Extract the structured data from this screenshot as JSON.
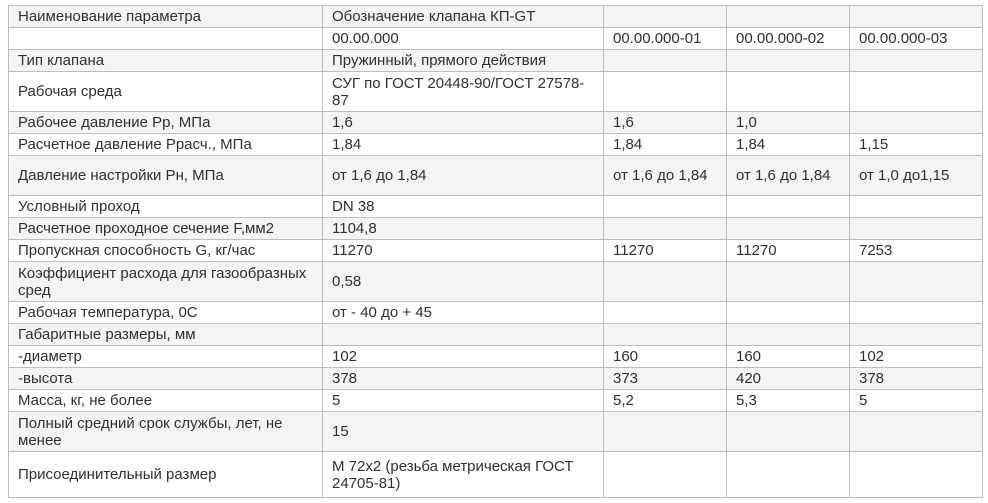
{
  "table": {
    "header": {
      "param_label": "Наименование параметра",
      "designation_label": "Обозначение клапана КП-GT",
      "variants": [
        "00.00.000",
        "00.00.000-01",
        "00.00.000-02",
        "00.00.000-03"
      ]
    },
    "rows": [
      {
        "param": "Тип клапана",
        "values": [
          "Пружинный, прямого действия",
          "",
          "",
          ""
        ]
      },
      {
        "param": "Рабочая среда",
        "values": [
          "СУГ по ГОСТ 20448-90/ГОСТ 27578-87",
          "",
          "",
          ""
        ]
      },
      {
        "param": "Рабочее давление Рр, МПа",
        "values": [
          "1,6",
          "1,6",
          "1,0",
          ""
        ]
      },
      {
        "param": "Расчетное давление Ррасч., МПа",
        "values": [
          "1,84",
          "1,84",
          "1,84",
          "1,15"
        ]
      },
      {
        "param": "Давление настройки Рн, МПа",
        "values": [
          "от 1,6 до 1,84",
          "от 1,6 до 1,84",
          "от 1,6 до 1,84",
          "от 1,0 до1,15"
        ]
      },
      {
        "param": "Условный проход",
        "values": [
          "DN 38",
          "",
          "",
          ""
        ]
      },
      {
        "param": "Расчетное проходное сечение F,мм2",
        "values": [
          "1104,8",
          "",
          "",
          ""
        ]
      },
      {
        "param": "Пропускная способность G, кг/час",
        "values": [
          "11270",
          "11270",
          "11270",
          "7253"
        ]
      },
      {
        "param": "Коэффициент расхода для газообразных сред",
        "values": [
          "0,58",
          "",
          "",
          ""
        ]
      },
      {
        "param": "Рабочая температура, 0С",
        "values": [
          "от - 40 до + 45",
          "",
          "",
          ""
        ]
      },
      {
        "param": "Габаритные размеры, мм",
        "values": [
          "",
          "",
          "",
          ""
        ]
      },
      {
        "param": "-диаметр",
        "values": [
          "102",
          "160",
          "160",
          "102"
        ]
      },
      {
        "param": "-высота",
        "values": [
          "378",
          "373",
          "420",
          "378"
        ]
      },
      {
        "param": "Масса, кг, не более",
        "values": [
          "5",
          "5,2",
          "5,3",
          "5"
        ]
      },
      {
        "param": "Полный средний срок службы, лет, не менее",
        "values": [
          "15",
          "",
          "",
          ""
        ]
      },
      {
        "param": "Присоединительный размер",
        "values": [
          "М 72х2 (резьба метрическая ГОСТ 24705-81)",
          "",
          "",
          ""
        ]
      }
    ]
  }
}
